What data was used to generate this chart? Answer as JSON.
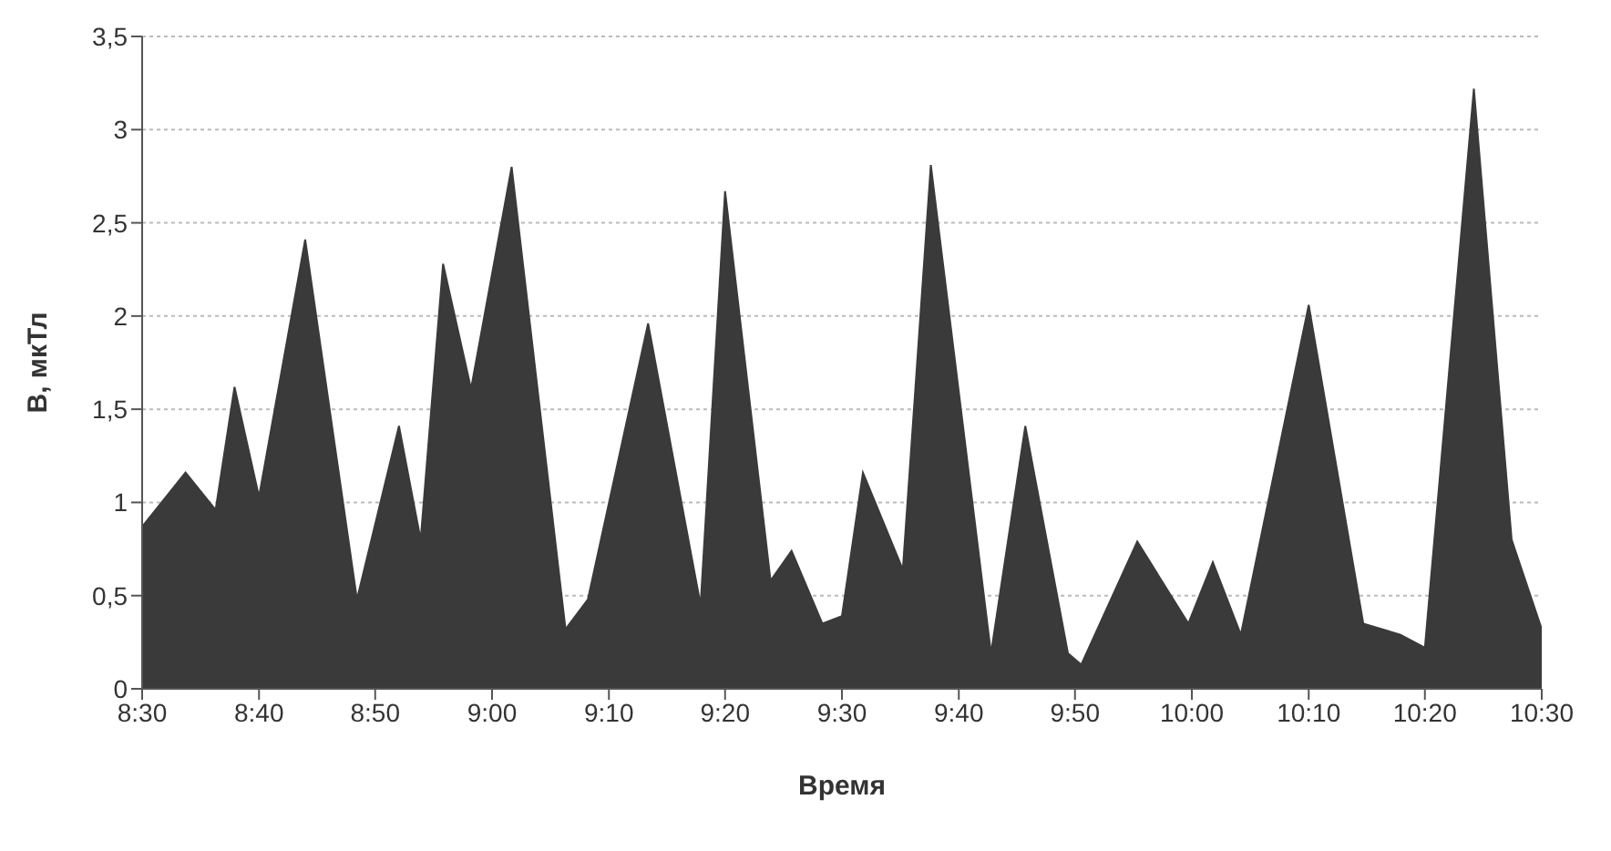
{
  "chart_data": {
    "type": "area",
    "xlabel": "Время",
    "ylabel": "B, мкТл",
    "x": [
      8.5,
      8.562,
      8.605,
      8.632,
      8.667,
      8.733,
      8.807,
      8.867,
      8.898,
      8.93,
      8.97,
      9.028,
      9.105,
      9.137,
      9.223,
      9.298,
      9.333,
      9.398,
      9.428,
      9.472,
      9.5,
      9.53,
      9.587,
      9.627,
      9.713,
      9.762,
      9.823,
      9.842,
      9.922,
      9.995,
      10.03,
      10.07,
      10.167,
      10.245,
      10.298,
      10.333,
      10.403,
      10.457,
      10.5
    ],
    "series": [
      {
        "color": "#3a3a3a",
        "values": [
          0.87,
          1.16,
          0.96,
          1.62,
          1.03,
          2.41,
          0.48,
          1.41,
          0.8,
          2.28,
          1.61,
          2.8,
          0.32,
          0.48,
          1.96,
          0.45,
          2.67,
          0.58,
          0.74,
          0.35,
          0.39,
          1.16,
          0.64,
          2.81,
          0.19,
          1.41,
          0.19,
          0.13,
          0.79,
          0.35,
          0.68,
          0.29,
          2.06,
          0.35,
          0.29,
          0.22,
          3.22,
          0.8,
          0.32
        ]
      }
    ],
    "xlim": [
      8.5,
      10.5
    ],
    "xticks": [
      {
        "value": 8.5,
        "label": "8:30"
      },
      {
        "value": 8.667,
        "label": "8:40"
      },
      {
        "value": 8.833,
        "label": "8:50"
      },
      {
        "value": 9,
        "label": "9:00"
      },
      {
        "value": 9.167,
        "label": "9:10"
      },
      {
        "value": 9.333,
        "label": "9:20"
      },
      {
        "value": 9.5,
        "label": "9:30"
      },
      {
        "value": 9.667,
        "label": "9:40"
      },
      {
        "value": 9.833,
        "label": "9:50"
      },
      {
        "value": 10,
        "label": "10:00"
      },
      {
        "value": 10.167,
        "label": "10:10"
      },
      {
        "value": 10.333,
        "label": "10:20"
      },
      {
        "value": 10.5,
        "label": "10:30"
      }
    ],
    "ylim": [
      0,
      3.5
    ],
    "yticks": [
      0,
      {
        "value": 0.5,
        "label": "0,5"
      },
      1,
      {
        "value": 1.5,
        "label": "1,5"
      },
      2,
      {
        "value": 2.5,
        "label": "2,5"
      },
      3,
      {
        "value": 3.5,
        "label": "3,5"
      }
    ],
    "grid": "y"
  }
}
